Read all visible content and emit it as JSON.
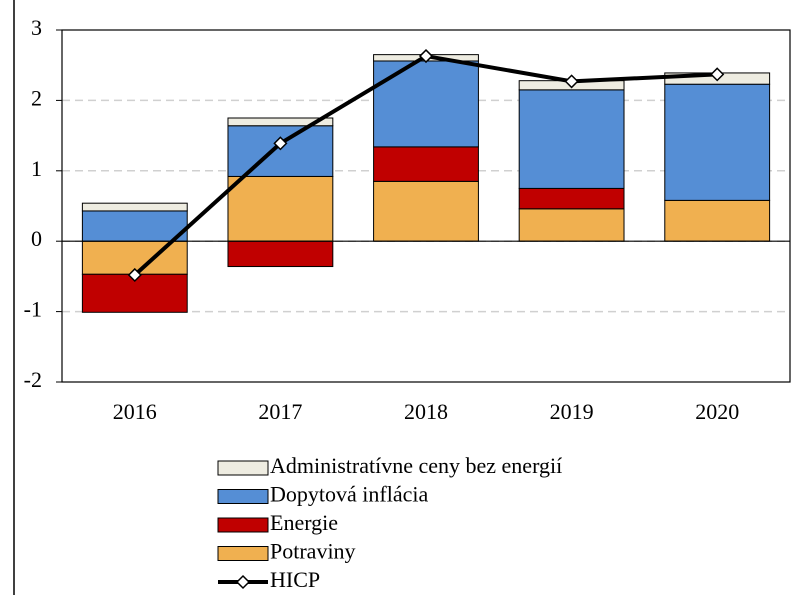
{
  "chart_data": {
    "type": "bar",
    "stacked": true,
    "categories": [
      "2016",
      "2017",
      "2018",
      "2019",
      "2020"
    ],
    "series": [
      {
        "name": "Administratívne ceny bez energií",
        "color": "#eeece1",
        "values": [
          0.11,
          0.11,
          0.09,
          0.13,
          0.16
        ]
      },
      {
        "name": "Dopytová inflácia",
        "color": "#558ed5",
        "values": [
          0.43,
          0.72,
          1.22,
          1.4,
          1.65
        ]
      },
      {
        "name": "Energie",
        "color": "#c00000",
        "values": [
          -0.54,
          -0.36,
          0.49,
          0.29,
          0
        ]
      },
      {
        "name": "Potraviny",
        "color": "#f0b050",
        "values": [
          -0.47,
          0.92,
          0.85,
          0.46,
          0.58
        ]
      },
      {
        "name": "HICP",
        "color": "#000000",
        "type": "line",
        "values": [
          -0.48,
          1.39,
          2.63,
          2.27,
          2.37
        ]
      }
    ],
    "ylim": [
      -2,
      3
    ],
    "yticks": [
      -2,
      -1,
      0,
      1,
      2,
      3
    ],
    "grid": true,
    "legend": "bottom"
  }
}
